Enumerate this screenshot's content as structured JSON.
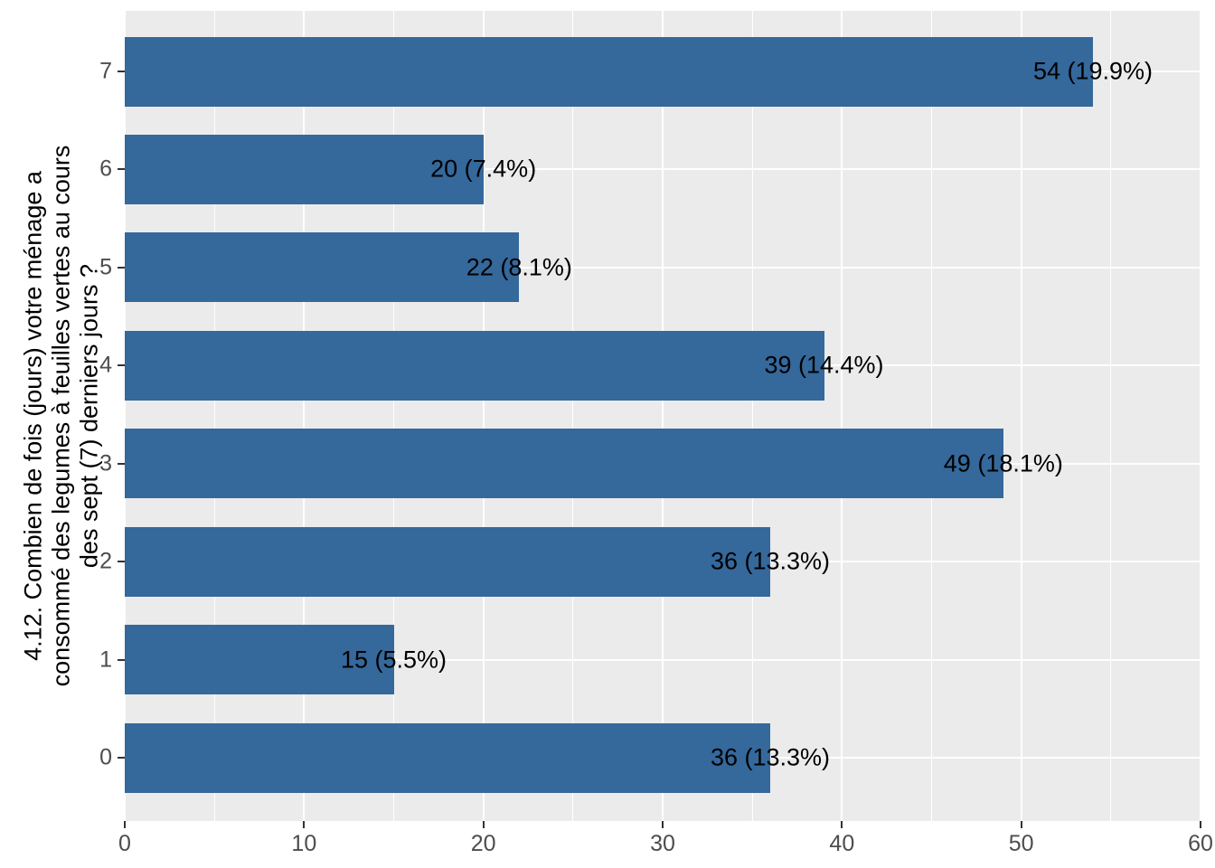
{
  "chart_data": {
    "type": "bar",
    "orientation": "horizontal",
    "title": "",
    "xlabel": "",
    "ylabel": "4.12. Combien de fois (jours) votre ménage a consommé des legumes à feuilles vertes au cours des sept (7) derniers jours ?",
    "ylabel_lines": [
      "4.12. Combien de fois (jours) votre ménage a",
      "consommé des legumes à feuilles vertes au cours",
      "des sept (7) derniers jours ?"
    ],
    "categories": [
      "7",
      "6",
      "5",
      "4",
      "3",
      "2",
      "1",
      "0"
    ],
    "values": [
      54,
      20,
      22,
      39,
      49,
      36,
      15,
      36
    ],
    "percents": [
      19.9,
      7.4,
      8.1,
      14.4,
      18.1,
      13.3,
      5.5,
      13.3
    ],
    "bar_labels": [
      "54 (19.9%)",
      "20 (7.4%)",
      "22 (8.1%)",
      "39 (14.4%)",
      "49 (18.1%)",
      "36 (13.3%)",
      "15 (5.5%)",
      "36 (13.3%)"
    ],
    "xlim": [
      0,
      60
    ],
    "x_ticks": [
      0,
      10,
      20,
      30,
      40,
      50,
      60
    ],
    "x_minor_ticks": [
      5,
      15,
      25,
      35,
      45,
      55
    ],
    "grid": true,
    "legend": "none",
    "colors": {
      "bar": "#35689B",
      "panel_bg": "#EBEBEB",
      "grid_major": "#FFFFFF",
      "grid_minor": "#FFFFFF",
      "tick_label": "#4D4D4D",
      "tick_mark": "#333333",
      "bar_label": "#000000",
      "axis_title": "#000000",
      "page_bg": "#FFFFFF"
    }
  }
}
